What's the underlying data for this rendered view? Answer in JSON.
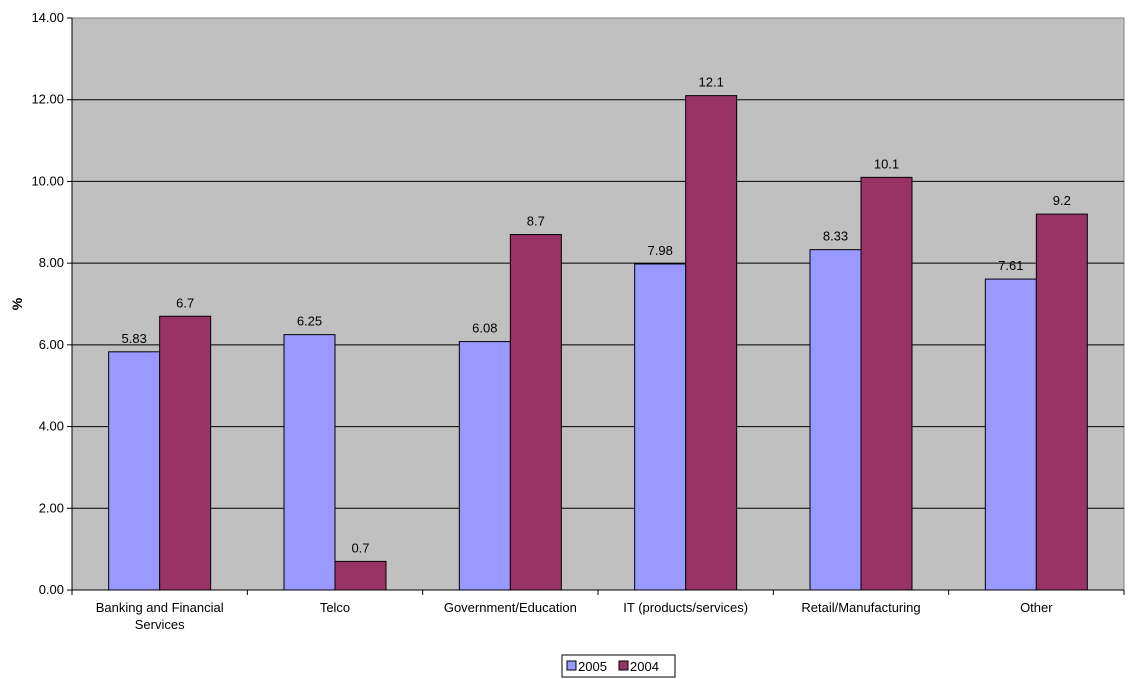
{
  "chart_data": {
    "type": "bar",
    "ylabel": "%",
    "ylim": [
      0,
      14
    ],
    "yticks": [
      0,
      2,
      4,
      6,
      8,
      10,
      12,
      14
    ],
    "ytick_labels": [
      "0.00",
      "2.00",
      "4.00",
      "6.00",
      "8.00",
      "10.00",
      "12.00",
      "14.00"
    ],
    "grid": true,
    "legend_position": "bottom",
    "categories": [
      [
        "Banking and Financial",
        "Services"
      ],
      [
        "Telco"
      ],
      [
        "Government/Education"
      ],
      [
        "IT (products/services)"
      ],
      [
        "Retail/Manufacturing"
      ],
      [
        "Other"
      ]
    ],
    "series": [
      {
        "name": "2005",
        "color": "#9999ff",
        "values": [
          5.83,
          6.25,
          6.08,
          7.98,
          8.33,
          7.61
        ],
        "labels": [
          "5.83",
          "6.25",
          "6.08",
          "7.98",
          "8.33",
          "7.61"
        ]
      },
      {
        "name": "2004",
        "color": "#993366",
        "values": [
          6.7,
          0.7,
          8.7,
          12.1,
          10.1,
          9.2
        ],
        "labels": [
          "6.7",
          "0.7",
          "8.7",
          "12.1",
          "10.1",
          "9.2"
        ]
      }
    ],
    "plot_background": "#c0c0c0"
  }
}
